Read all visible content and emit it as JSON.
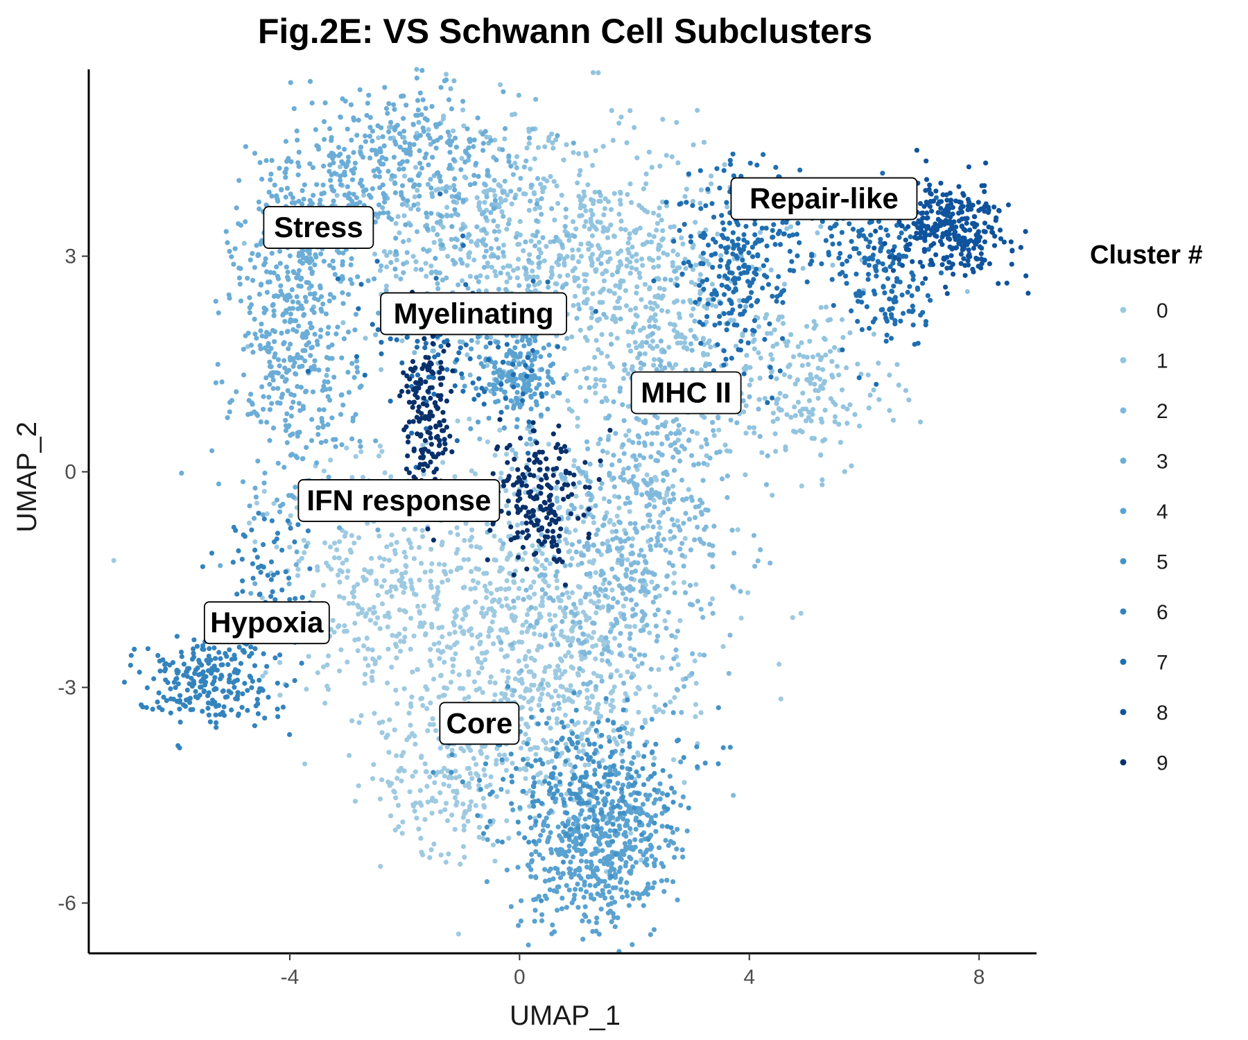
{
  "chart_data": {
    "type": "scatter",
    "title": "Fig.2E: VS Schwann Cell Subclusters",
    "xlabel": "UMAP_1",
    "ylabel": "UMAP_2",
    "xlim": [
      -7.5,
      9.0
    ],
    "ylim": [
      -6.7,
      5.6
    ],
    "xticks": [
      -4,
      0,
      4,
      8
    ],
    "yticks": [
      3,
      0,
      -3,
      -6
    ],
    "xtick_labels": [
      "-4",
      "0",
      "4",
      "8"
    ],
    "ytick_labels": [
      "3",
      "0",
      "-3",
      "-6"
    ],
    "grid": false,
    "legend": {
      "title": "Cluster #",
      "position": "right",
      "entries": [
        "0",
        "1",
        "2",
        "3",
        "4",
        "5",
        "6",
        "7",
        "8",
        "9"
      ]
    },
    "series": [
      {
        "name": "0",
        "color": "#9ecae1",
        "regions": [
          {
            "cx": -0.2,
            "cy": -1.8,
            "sx": 1.7,
            "sy": 1.2,
            "n": 700
          },
          {
            "cx": 0.4,
            "cy": -3.2,
            "sx": 1.2,
            "sy": 0.9,
            "n": 380
          },
          {
            "cx": -1.2,
            "cy": -4.3,
            "sx": 0.6,
            "sy": 0.5,
            "n": 160
          },
          {
            "cx": -2.6,
            "cy": -1.4,
            "sx": 0.9,
            "sy": 0.7,
            "n": 160
          }
        ]
      },
      {
        "name": "1",
        "color": "#93c4df",
        "regions": [
          {
            "cx": 0.3,
            "cy": 3.4,
            "sx": 1.7,
            "sy": 0.9,
            "n": 480
          },
          {
            "cx": 1.8,
            "cy": 2.6,
            "sx": 1.2,
            "sy": 0.7,
            "n": 300
          },
          {
            "cx": 4.9,
            "cy": 1.2,
            "sx": 0.8,
            "sy": 0.6,
            "n": 200
          },
          {
            "cx": 2.6,
            "cy": 1.5,
            "sx": 0.9,
            "sy": 0.7,
            "n": 150
          }
        ]
      },
      {
        "name": "2",
        "color": "#80b9dc",
        "regions": [
          {
            "cx": 2.4,
            "cy": -0.4,
            "sx": 0.8,
            "sy": 1.2,
            "n": 380
          },
          {
            "cx": 1.3,
            "cy": -1.6,
            "sx": 0.7,
            "sy": 0.8,
            "n": 200
          },
          {
            "cx": -0.9,
            "cy": 3.2,
            "sx": 1.0,
            "sy": 0.8,
            "n": 220
          }
        ]
      },
      {
        "name": "3",
        "color": "#6badd6",
        "regions": [
          {
            "cx": -3.9,
            "cy": 1.9,
            "sx": 0.55,
            "sy": 1.3,
            "n": 520
          },
          {
            "cx": -2.0,
            "cy": 4.4,
            "sx": 0.9,
            "sy": 0.5,
            "n": 260
          },
          {
            "cx": -3.3,
            "cy": 3.6,
            "sx": 0.6,
            "sy": 0.5,
            "n": 150
          }
        ]
      },
      {
        "name": "4",
        "color": "#5aa2d0",
        "regions": [
          {
            "cx": 1.2,
            "cy": -5.3,
            "sx": 0.6,
            "sy": 0.55,
            "n": 400
          },
          {
            "cx": 2.0,
            "cy": -4.9,
            "sx": 0.4,
            "sy": 0.6,
            "n": 160
          },
          {
            "cx": 0.0,
            "cy": 1.4,
            "sx": 0.35,
            "sy": 0.4,
            "n": 200
          }
        ]
      },
      {
        "name": "5",
        "color": "#4392c6",
        "regions": [
          {
            "cx": 1.0,
            "cy": -4.2,
            "sx": 0.9,
            "sy": 0.5,
            "n": 240
          }
        ]
      },
      {
        "name": "6",
        "color": "#3383bd",
        "regions": [
          {
            "cx": -5.5,
            "cy": -2.9,
            "sx": 0.6,
            "sy": 0.3,
            "n": 230
          },
          {
            "cx": -4.4,
            "cy": -1.6,
            "sx": 0.4,
            "sy": 0.6,
            "n": 90
          }
        ]
      },
      {
        "name": "7",
        "color": "#1f6eb1",
        "regions": [
          {
            "cx": 3.8,
            "cy": 2.8,
            "sx": 0.5,
            "sy": 0.8,
            "n": 220
          },
          {
            "cx": 4.9,
            "cy": 3.2,
            "sx": 1.0,
            "sy": 0.4,
            "n": 140
          },
          {
            "cx": 6.5,
            "cy": 2.6,
            "sx": 0.4,
            "sy": 0.5,
            "n": 120
          },
          {
            "cx": -1.0,
            "cy": 1.6,
            "sx": 0.9,
            "sy": 0.6,
            "n": 110
          }
        ]
      },
      {
        "name": "8",
        "color": "#0f539c",
        "regions": [
          {
            "cx": 7.5,
            "cy": 3.4,
            "sx": 0.5,
            "sy": 0.32,
            "n": 330
          }
        ]
      },
      {
        "name": "9",
        "color": "#08306b",
        "regions": [
          {
            "cx": -1.6,
            "cy": 0.6,
            "sx": 0.22,
            "sy": 0.6,
            "n": 170
          },
          {
            "cx": 0.3,
            "cy": -0.2,
            "sx": 0.45,
            "sy": 0.4,
            "n": 150
          },
          {
            "cx": 0.4,
            "cy": -0.9,
            "sx": 0.25,
            "sy": 0.3,
            "n": 50
          }
        ]
      }
    ],
    "annotations": [
      {
        "text": "Stress",
        "x": -3.5,
        "y": 3.4
      },
      {
        "text": "Myelinating",
        "x": -0.8,
        "y": 2.2
      },
      {
        "text": "Repair-like",
        "x": 5.3,
        "y": 3.8
      },
      {
        "text": "MHC II",
        "x": 2.9,
        "y": 1.1
      },
      {
        "text": "IFN response",
        "x": -2.1,
        "y": -0.4
      },
      {
        "text": "Hypoxia",
        "x": -4.4,
        "y": -2.1
      },
      {
        "text": "Core",
        "x": -0.7,
        "y": -3.5
      }
    ]
  }
}
